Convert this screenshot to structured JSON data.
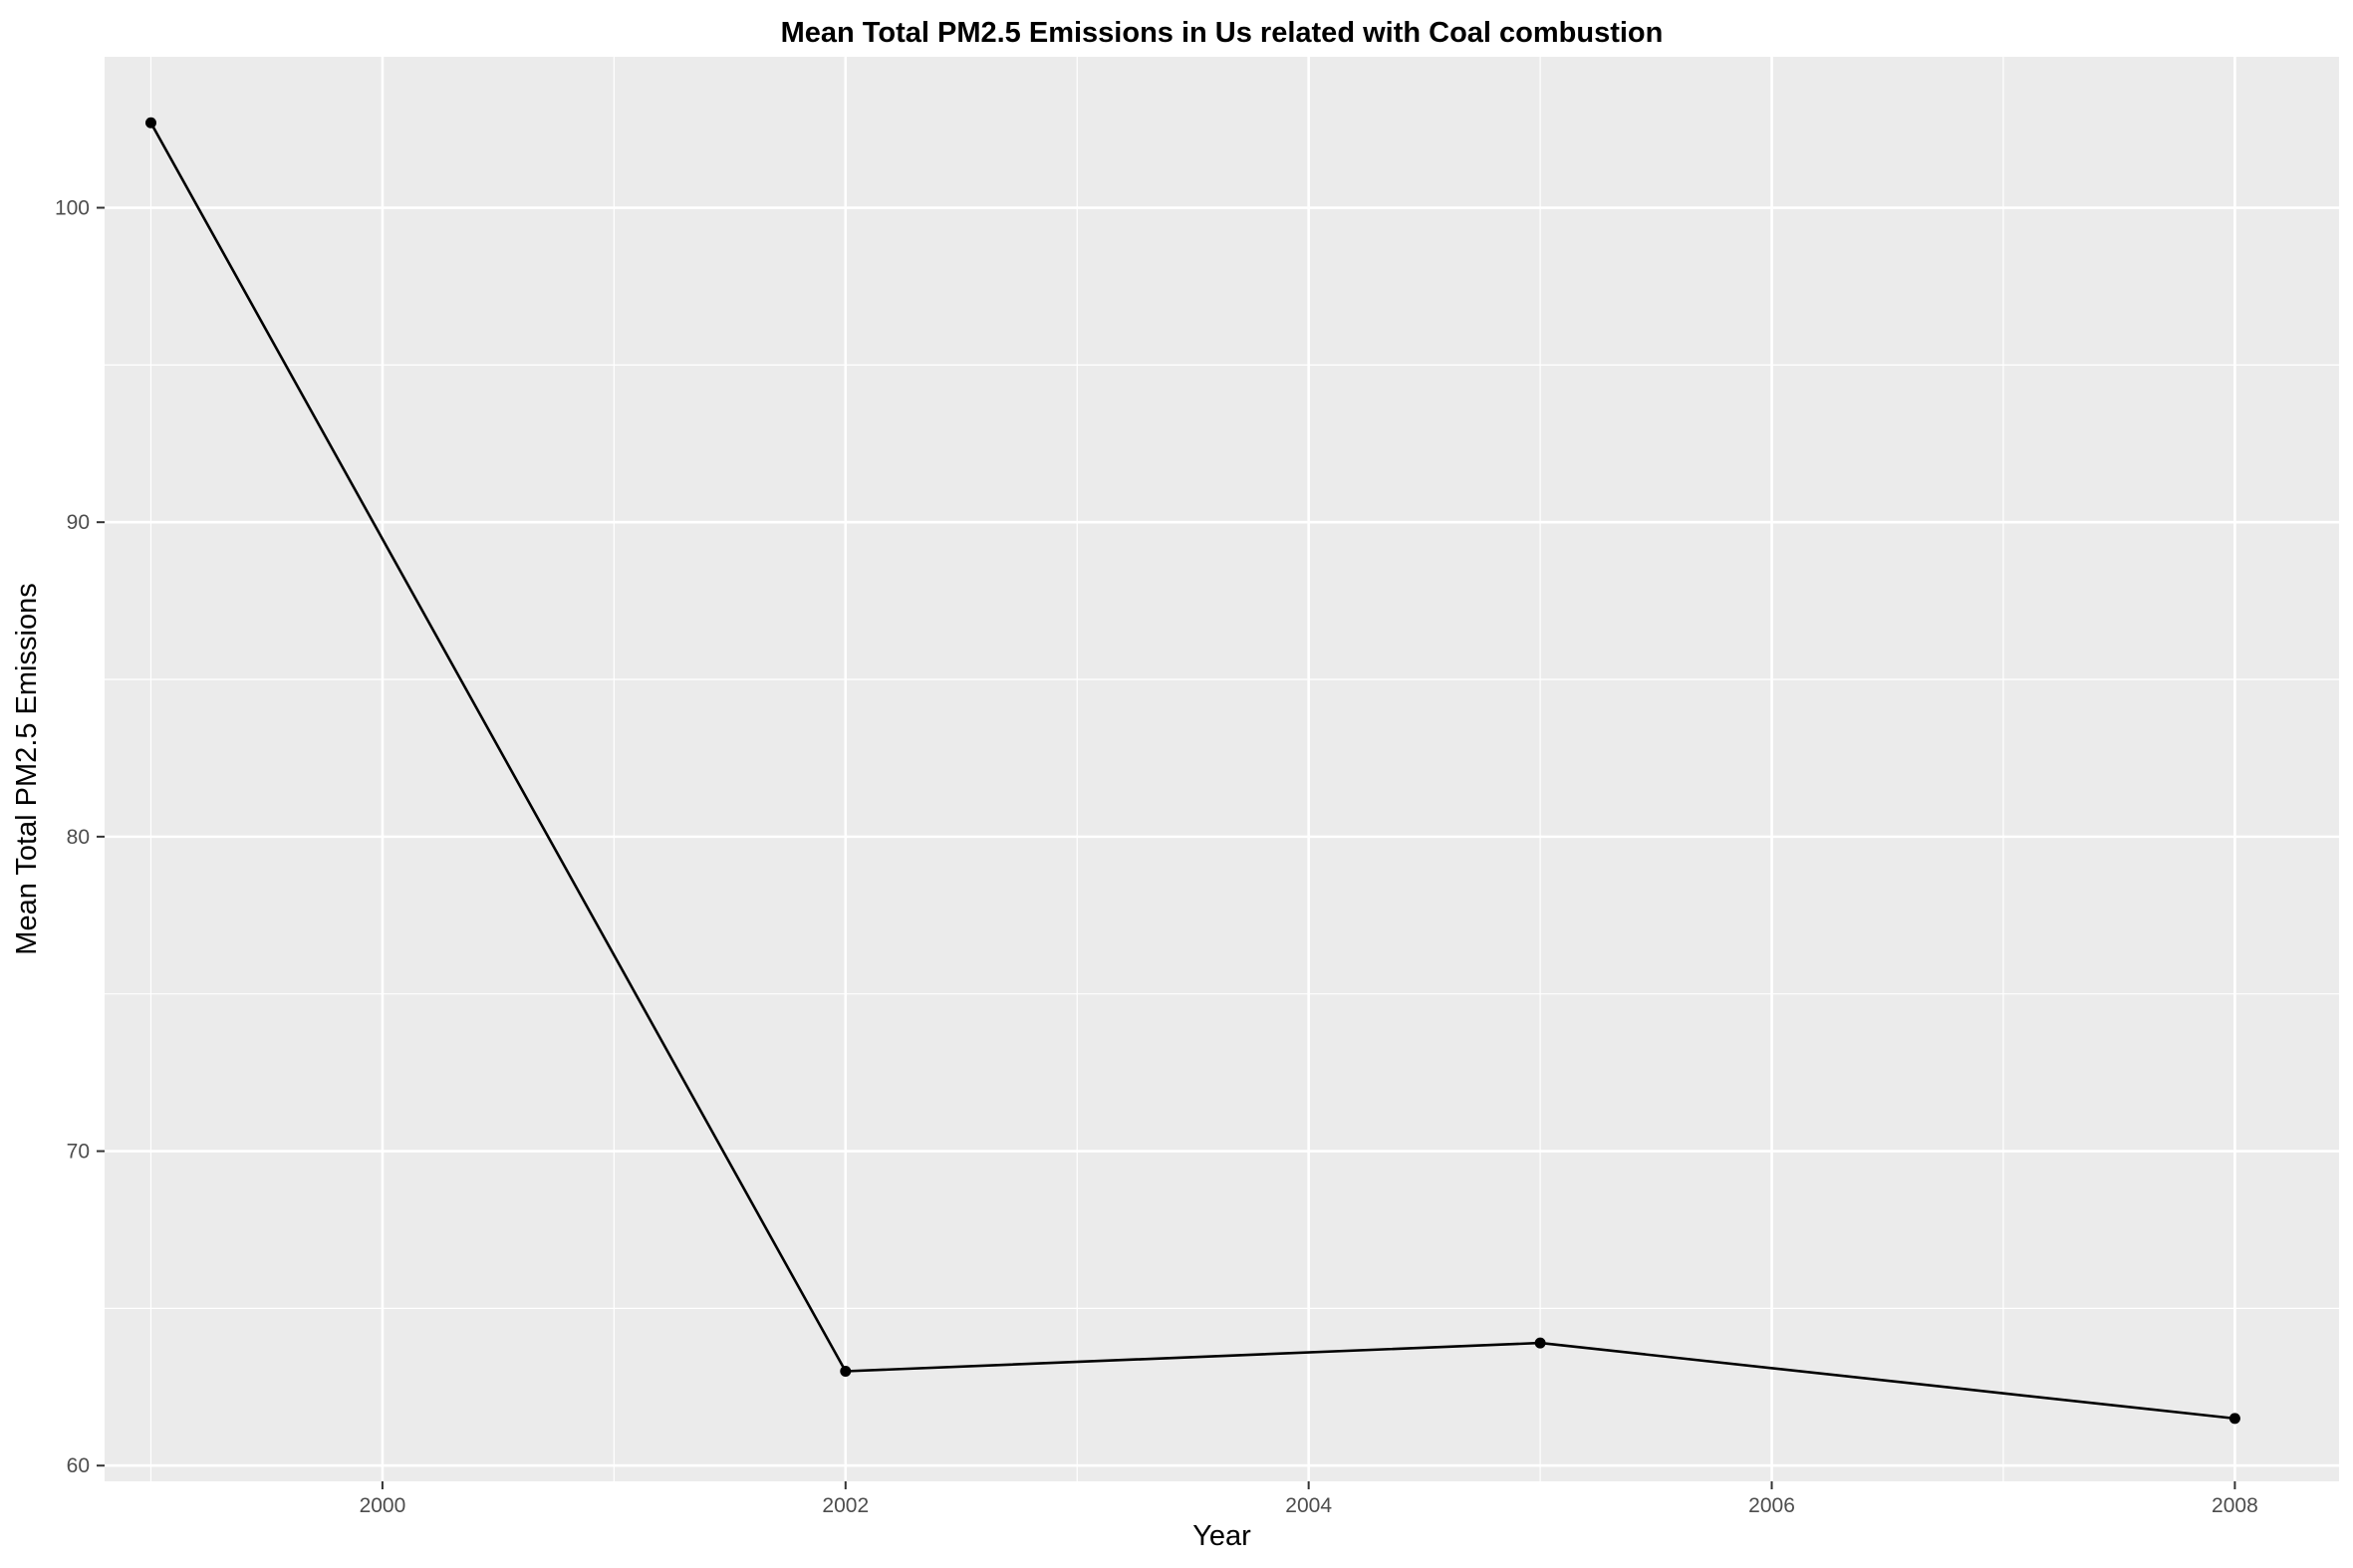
{
  "chart_data": {
    "type": "line",
    "title": "Mean Total PM2.5 Emissions in Us related with Coal combustion",
    "xlabel": "Year",
    "ylabel": "Mean Total PM2.5 Emissions",
    "x": [
      1999,
      2002,
      2005,
      2008
    ],
    "series": [
      {
        "values": [
          102.7,
          63.0,
          63.9,
          61.5
        ]
      }
    ],
    "xlim": [
      1998.8,
      2008.45
    ],
    "ylim": [
      59.5,
      104.8
    ],
    "x_ticks": [
      2000,
      2002,
      2004,
      2006,
      2008
    ],
    "x_tick_labels": [
      "2000",
      "2002",
      "2004",
      "2006",
      "2008"
    ],
    "y_ticks": [
      60,
      70,
      80,
      90,
      100
    ],
    "y_tick_labels": [
      "60",
      "70",
      "80",
      "90",
      "100"
    ],
    "grid": true,
    "colors": {
      "panel_background": "#ebebeb",
      "gridline": "#ffffff",
      "line": "#000000",
      "point": "#000000",
      "tick_label": "#4d4d4d",
      "tick_mark": "#333333"
    }
  }
}
